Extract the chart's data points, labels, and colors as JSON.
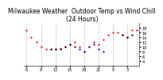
{
  "title": "Milwaukee Weather  Outdoor Temp vs Wind Chill\n(24 Hours)",
  "bg_color": "#ffffff",
  "plot_bg_color": "#ffffff",
  "grid_color": "#aaaaaa",
  "ylim": [
    2,
    20
  ],
  "yticks": [
    4,
    6,
    8,
    10,
    12,
    14,
    16,
    18
  ],
  "red_x": [
    0,
    1,
    2,
    3,
    4,
    5,
    6,
    7,
    8,
    9,
    10,
    11,
    12,
    13,
    14,
    15,
    16,
    17,
    18,
    19,
    20,
    21,
    22,
    23
  ],
  "red_y": [
    17,
    14,
    12,
    10,
    9,
    9,
    9,
    9.5,
    10,
    11,
    12,
    10,
    8,
    10,
    12,
    11,
    13,
    15,
    16,
    16,
    15,
    14,
    17,
    17
  ],
  "blue_x": [
    11,
    12,
    13,
    14,
    15,
    16
  ],
  "blue_y": [
    9,
    8,
    10,
    11,
    9,
    8
  ],
  "black_x": [
    5,
    6,
    7,
    8,
    9,
    10,
    20,
    21,
    22
  ],
  "black_y": [
    9,
    9,
    9,
    10,
    11,
    10,
    15,
    14,
    15
  ],
  "vgrid_x": [
    0,
    3,
    6,
    9,
    12,
    15,
    18,
    21,
    23
  ],
  "xtick_positions": [
    0,
    3,
    6,
    9,
    12,
    15,
    18,
    21
  ],
  "xtick_labels": [
    "6",
    "9",
    "12",
    "15",
    "18",
    "21",
    "0",
    "3"
  ],
  "red_color": "#ff0000",
  "blue_color": "#0000ff",
  "black_color": "#000000",
  "title_fontsize": 5.5,
  "axis_fontsize": 3.5
}
